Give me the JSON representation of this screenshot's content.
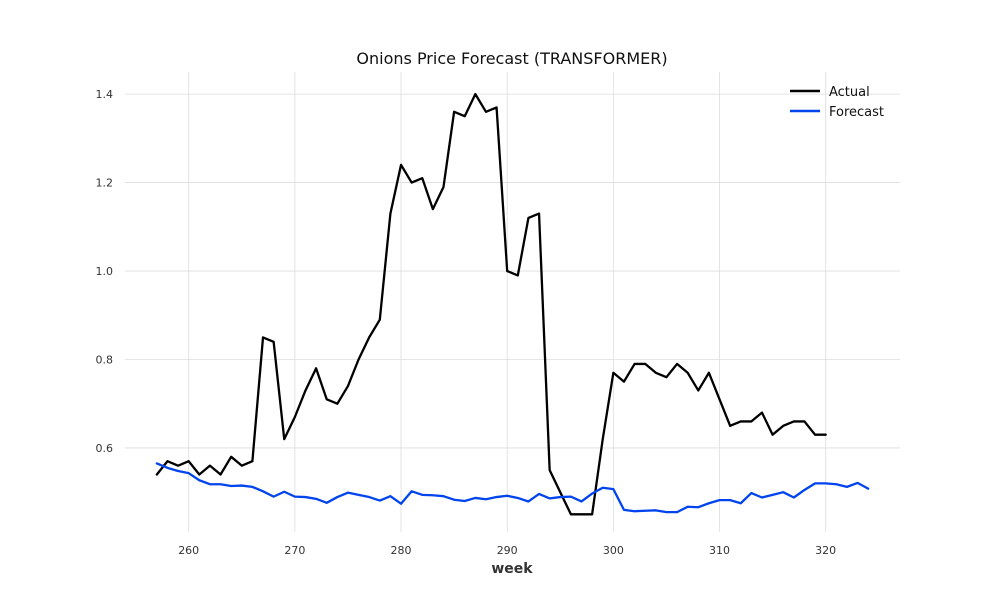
{
  "chart_data": {
    "type": "line",
    "title": "Onions Price Forecast (TRANSFORMER)",
    "xlabel": "week",
    "ylabel": "",
    "xlim": [
      254,
      327
    ],
    "ylim": [
      0.41,
      1.45
    ],
    "x_ticks": [
      260,
      270,
      280,
      290,
      300,
      310,
      320
    ],
    "y_ticks": [
      0.6,
      0.8,
      1.0,
      1.2,
      1.4
    ],
    "x_tick_labels": [
      "260",
      "270",
      "280",
      "290",
      "300",
      "310",
      "320"
    ],
    "y_tick_labels": [
      "0.6",
      "0.8",
      "1.0",
      "1.2",
      "1.4"
    ],
    "grid": true,
    "legend_position": "top-right",
    "series": [
      {
        "name": "Actual",
        "color": "#000000",
        "x_start": 257,
        "values": [
          0.54,
          0.57,
          0.56,
          0.57,
          0.54,
          0.56,
          0.54,
          0.58,
          0.56,
          0.57,
          0.85,
          0.84,
          0.62,
          0.67,
          0.73,
          0.78,
          0.71,
          0.7,
          0.74,
          0.8,
          0.85,
          0.89,
          1.13,
          1.24,
          1.2,
          1.21,
          1.14,
          1.19,
          1.36,
          1.35,
          1.4,
          1.36,
          1.37,
          1.0,
          0.99,
          1.12,
          1.13,
          0.55,
          0.5,
          0.45,
          0.45,
          0.45,
          0.62,
          0.77,
          0.75,
          0.79,
          0.79,
          0.77,
          0.76,
          0.79,
          0.77,
          0.73,
          0.77,
          0.71,
          0.65,
          0.66,
          0.66,
          0.68,
          0.63,
          0.65,
          0.66,
          0.66,
          0.63,
          0.63
        ]
      },
      {
        "name": "Forecast",
        "color": "#0044ee",
        "x_start": 257,
        "values": [
          0.565,
          0.555,
          0.548,
          0.543,
          0.527,
          0.518,
          0.518,
          0.514,
          0.515,
          0.512,
          0.502,
          0.49,
          0.501,
          0.49,
          0.489,
          0.485,
          0.476,
          0.489,
          0.499,
          0.494,
          0.489,
          0.481,
          0.491,
          0.474,
          0.502,
          0.494,
          0.493,
          0.491,
          0.483,
          0.48,
          0.487,
          0.484,
          0.489,
          0.492,
          0.487,
          0.479,
          0.496,
          0.486,
          0.489,
          0.49,
          0.479,
          0.497,
          0.51,
          0.507,
          0.46,
          0.457,
          0.458,
          0.459,
          0.455,
          0.455,
          0.467,
          0.466,
          0.475,
          0.482,
          0.482,
          0.475,
          0.498,
          0.488,
          0.494,
          0.5,
          0.488,
          0.505,
          0.52,
          0.52,
          0.518,
          0.512,
          0.521,
          0.508
        ]
      }
    ]
  }
}
